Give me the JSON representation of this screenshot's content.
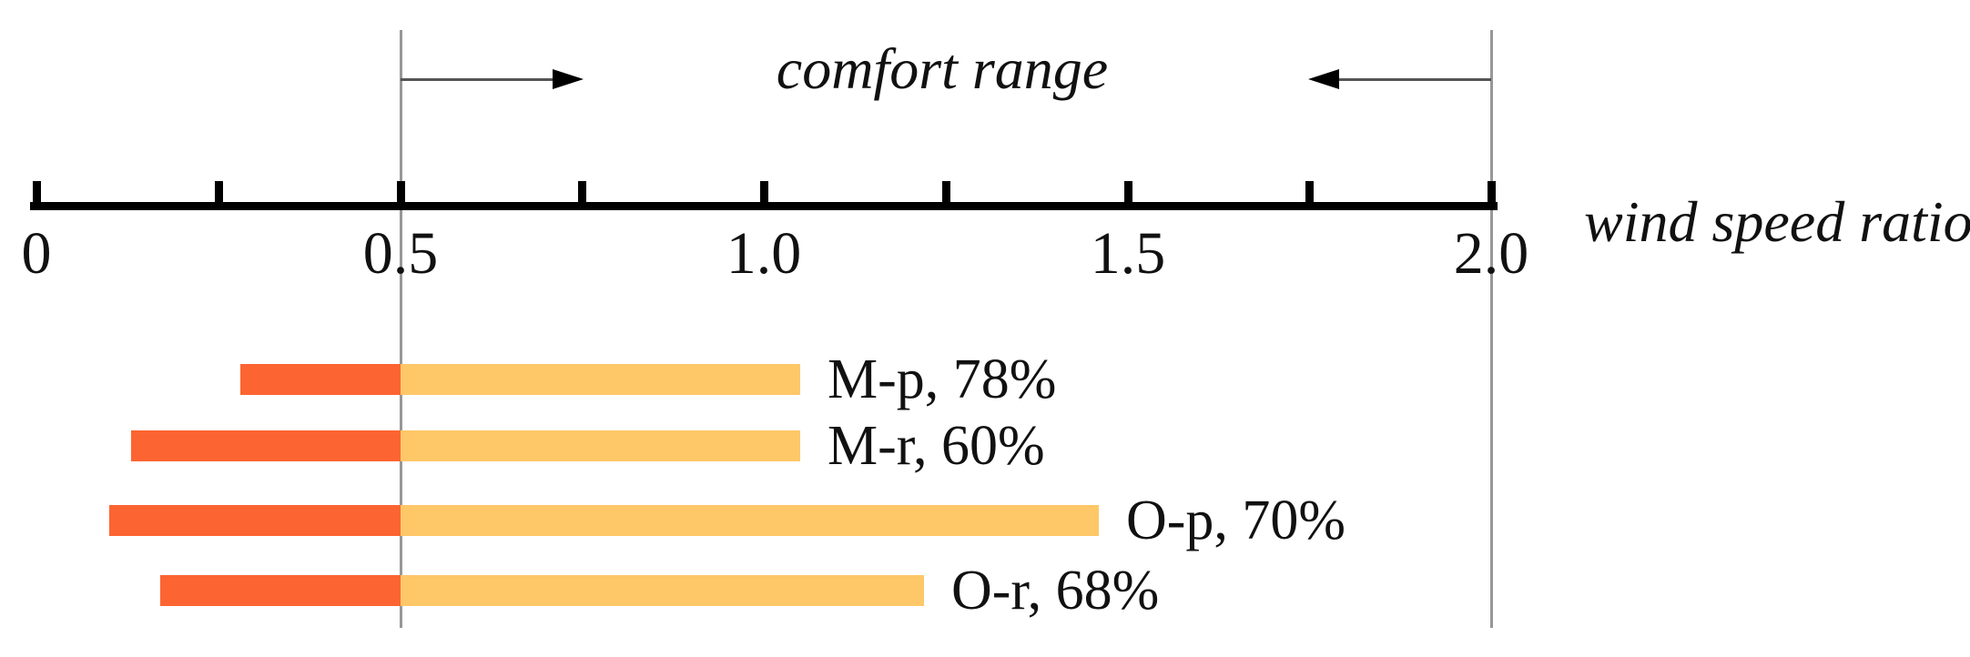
{
  "chart_data": {
    "type": "bar",
    "orientation": "horizontal",
    "axis_title": "wind speed ratio",
    "comfort_label": "comfort range",
    "axis": {
      "min": 0,
      "max": 2.0,
      "minor_tick_step": 0.25,
      "labeled_ticks": [
        {
          "value": 0,
          "label": "0"
        },
        {
          "value": 0.5,
          "label": "0.5"
        },
        {
          "value": 1.0,
          "label": "1.0"
        },
        {
          "value": 1.5,
          "label": "1.5"
        },
        {
          "value": 2.0,
          "label": "2.0"
        }
      ]
    },
    "comfort_range": {
      "min": 0.5,
      "max": 2.0
    },
    "series": [
      {
        "name": "M-p",
        "percent": "78%",
        "label": "M-p, 78%",
        "bar_min": 0.28,
        "bar_max": 1.05
      },
      {
        "name": "M-r",
        "percent": "60%",
        "label": "M-r, 60%",
        "bar_min": 0.13,
        "bar_max": 1.05
      },
      {
        "name": "O-p",
        "percent": "70%",
        "label": "O-p, 70%",
        "bar_min": 0.1,
        "bar_max": 1.46
      },
      {
        "name": "O-r",
        "percent": "68%",
        "label": "O-r, 68%",
        "bar_min": 0.17,
        "bar_max": 1.22
      }
    ],
    "colors": {
      "below_comfort": "#FC6432",
      "within_comfort": "#FEC768",
      "guide_line": "#979797",
      "axis": "#000000",
      "arrow": "#555555",
      "text": "#111111"
    }
  }
}
